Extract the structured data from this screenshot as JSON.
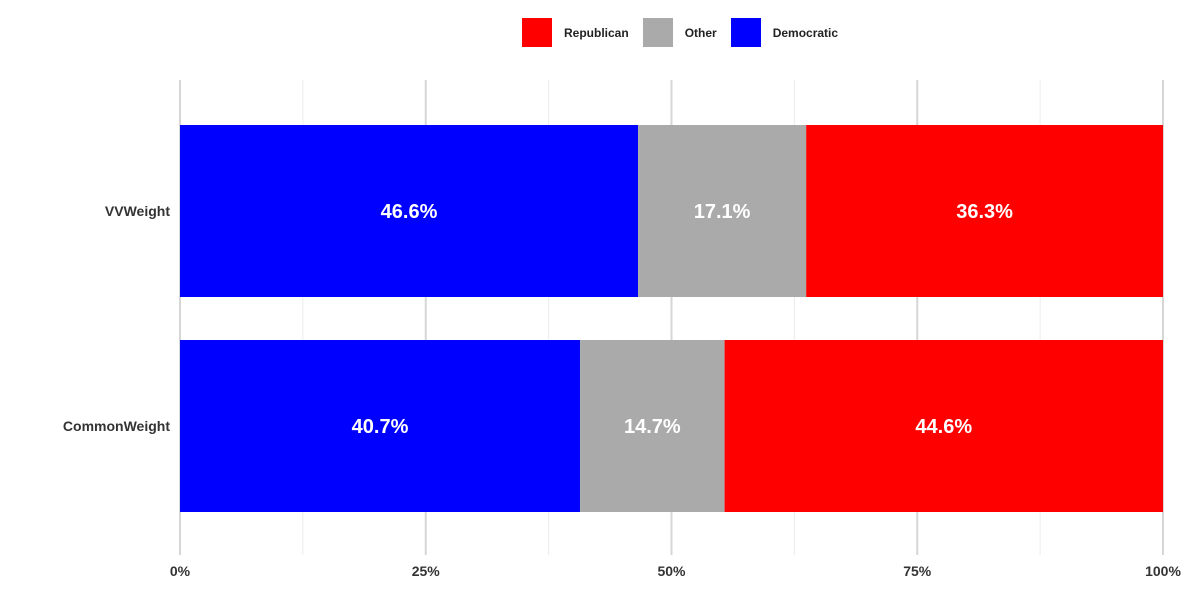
{
  "chart_data": {
    "type": "bar",
    "orientation": "horizontal",
    "stacked": true,
    "categories": [
      "VVWeight",
      "CommonWeight"
    ],
    "series": [
      {
        "name": "Democratic",
        "color": "#0000ff",
        "values": [
          46.6,
          40.7
        ],
        "labels": [
          "46.6%",
          "40.7%"
        ]
      },
      {
        "name": "Other",
        "color": "#aaaaaa",
        "values": [
          17.1,
          14.7
        ],
        "labels": [
          "17.1%",
          "14.7%"
        ]
      },
      {
        "name": "Republican",
        "color": "#ff0000",
        "values": [
          36.3,
          44.6
        ],
        "labels": [
          "36.3%",
          "44.6%"
        ]
      }
    ],
    "xlim": [
      0,
      100
    ],
    "x_ticks": [
      0,
      25,
      50,
      75,
      100
    ],
    "x_tick_labels": [
      "0%",
      "25%",
      "50%",
      "75%",
      "100%"
    ],
    "legend": {
      "position": "top",
      "order": [
        "Republican",
        "Other",
        "Democratic"
      ]
    },
    "grid": true
  }
}
